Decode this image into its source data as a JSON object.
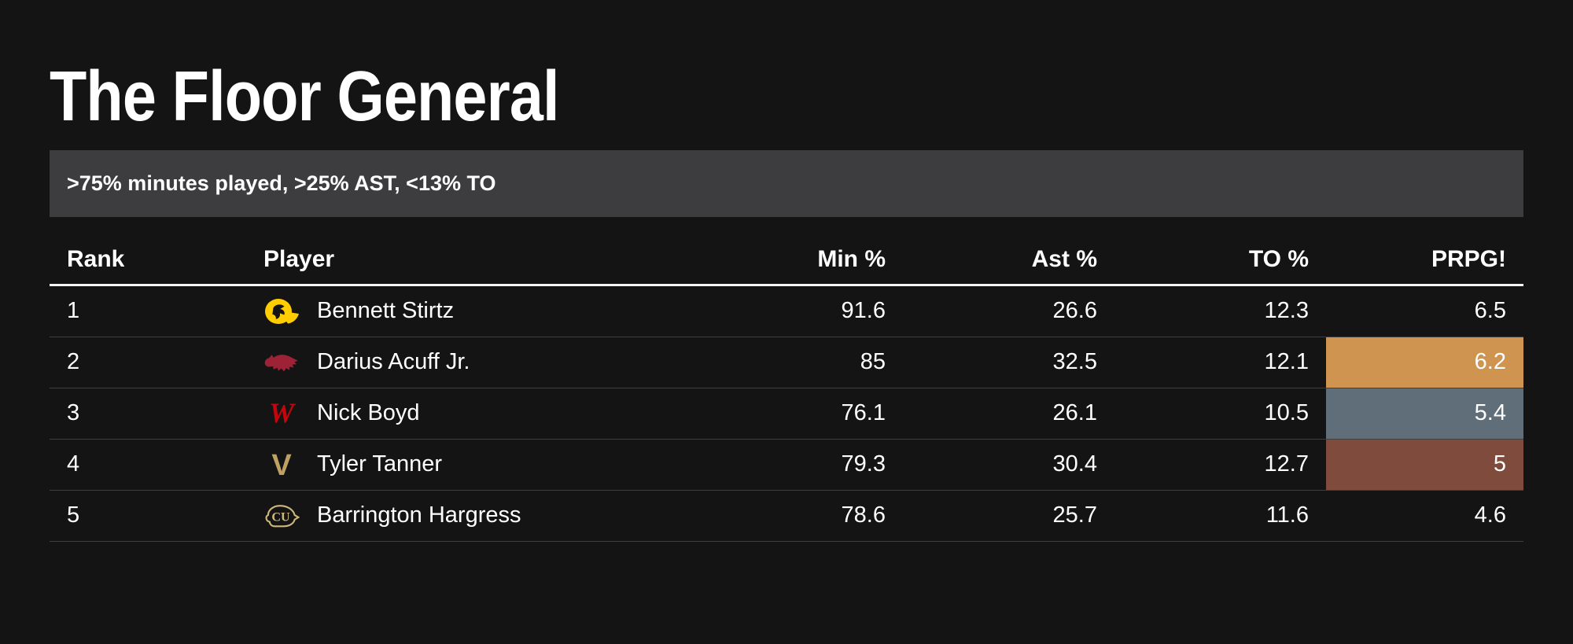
{
  "page": {
    "background": "#141414"
  },
  "title": "The Floor General",
  "filter_bar": {
    "text": ">75% minutes played, >25% AST, <13% TO",
    "background": "#3d3d3f"
  },
  "table": {
    "columns": [
      {
        "key": "rank",
        "label": "Rank",
        "align": "left"
      },
      {
        "key": "player",
        "label": "Player",
        "align": "left"
      },
      {
        "key": "min",
        "label": "Min %",
        "align": "right"
      },
      {
        "key": "ast",
        "label": "Ast %",
        "align": "right"
      },
      {
        "key": "to",
        "label": "TO %",
        "align": "right"
      },
      {
        "key": "prpg",
        "label": "PRPG!",
        "align": "right"
      }
    ],
    "rows": [
      {
        "rank": "1",
        "player": "Bennett Stirtz",
        "team": "iowa",
        "team_icon": "iowa-hawkeyes-logo-icon",
        "min": "91.6",
        "ast": "26.6",
        "to": "12.3",
        "prpg": "6.5",
        "prpg_bg": null
      },
      {
        "rank": "2",
        "player": "Darius Acuff Jr.",
        "team": "arkansas",
        "team_icon": "arkansas-razorbacks-logo-icon",
        "min": "85",
        "ast": "32.5",
        "to": "12.1",
        "prpg": "6.2",
        "prpg_bg": "#cf9550"
      },
      {
        "rank": "3",
        "player": "Nick Boyd",
        "team": "wisconsin",
        "team_icon": "wisconsin-badgers-logo-icon",
        "min": "76.1",
        "ast": "26.1",
        "to": "10.5",
        "prpg": "5.4",
        "prpg_bg": "#5f6e78"
      },
      {
        "rank": "4",
        "player": "Tyler Tanner",
        "team": "vanderbilt",
        "team_icon": "vanderbilt-commodores-logo-icon",
        "min": "79.3",
        "ast": "30.4",
        "to": "12.7",
        "prpg": "5",
        "prpg_bg": "#7e4b3d"
      },
      {
        "rank": "5",
        "player": "Barrington Hargress",
        "team": "colorado",
        "team_icon": "colorado-buffaloes-logo-icon",
        "min": "78.6",
        "ast": "25.7",
        "to": "11.6",
        "prpg": "4.6",
        "prpg_bg": null
      }
    ]
  },
  "colors": {
    "background": "#141414",
    "filter_bar_bg": "#3d3d3f",
    "row_divider": "#3f3f3f",
    "header_rule": "#f5f5f5",
    "highlight_orange": "#cf9550",
    "highlight_slate": "#5f6e78",
    "highlight_brown": "#7e4b3d",
    "iowa_gold": "#ffcd00",
    "arkansas_red": "#9d2235",
    "wisconsin_red": "#c5050c",
    "vanderbilt_gold": "#bfa163",
    "colorado_gold": "#cfb87c"
  },
  "chart_data": {
    "type": "table",
    "title": "The Floor General",
    "subtitle": ">75% minutes played, >25% AST, <13% TO",
    "columns": [
      "Rank",
      "Player",
      "Min %",
      "Ast %",
      "TO %",
      "PRPG!"
    ],
    "rows": [
      [
        1,
        "Bennett Stirtz",
        91.6,
        26.6,
        12.3,
        6.5
      ],
      [
        2,
        "Darius Acuff Jr.",
        85,
        32.5,
        12.1,
        6.2
      ],
      [
        3,
        "Nick Boyd",
        76.1,
        26.1,
        10.5,
        5.4
      ],
      [
        4,
        "Tyler Tanner",
        79.3,
        30.4,
        12.7,
        5
      ],
      [
        5,
        "Barrington Hargress",
        78.6,
        25.7,
        11.6,
        4.6
      ]
    ],
    "team_logos_by_row": [
      "Iowa Hawkeyes",
      "Arkansas Razorbacks",
      "Wisconsin Badgers",
      "Vanderbilt Commodores",
      "Colorado Buffaloes"
    ],
    "prpg_cell_highlights_by_row": [
      null,
      "#cf9550",
      "#5f6e78",
      "#7e4b3d",
      null
    ],
    "layout_hints": {
      "theme": "dark",
      "grid": "horizontal-dividers",
      "numeric_alignment": "right"
    }
  }
}
